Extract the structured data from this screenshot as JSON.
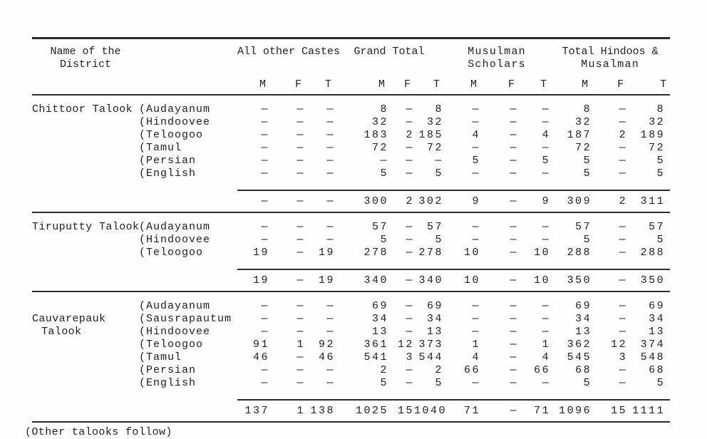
{
  "page": {
    "footer_note": "(Other talooks follow)"
  },
  "colors": {
    "background": "#fefefe",
    "text": "#1f1f1f",
    "rule": "#2b2b2b"
  },
  "table": {
    "district_header_lines": [
      "Name of the",
      "District"
    ],
    "column_groups": [
      {
        "name": "all-other-castes",
        "label_lines": [
          "All other Castes"
        ],
        "spaced": false
      },
      {
        "name": "grand-total",
        "label_lines": [
          "Grand Total"
        ],
        "spaced": false
      },
      {
        "name": "musulman-scholars",
        "label_lines": [
          "Musulman",
          "Scholars"
        ],
        "spaced": true
      },
      {
        "name": "total-hindoos-musalman",
        "label_lines": [
          "Total Hindoos &",
          "Musalman"
        ],
        "spaced": true
      }
    ],
    "sub_columns": [
      "M",
      "F",
      "T"
    ],
    "blocks": [
      {
        "district_lines": [
          {
            "row": 0,
            "text": "Chittoor Talook",
            "indent": false
          }
        ],
        "rows": [
          {
            "language": "(Audayanum",
            "values": [
              "—",
              "—",
              "—",
              "8",
              "—",
              "8",
              "—",
              "—",
              "—",
              "8",
              "—",
              "8"
            ]
          },
          {
            "language": "(Hindoovee",
            "values": [
              "—",
              "—",
              "—",
              "32",
              "—",
              "32",
              "—",
              "—",
              "—",
              "32",
              "—",
              "32"
            ]
          },
          {
            "language": "(Teloogoo",
            "values": [
              "—",
              "—",
              "—",
              "183",
              "2",
              "185",
              "4",
              "—",
              "4",
              "187",
              "2",
              "189"
            ]
          },
          {
            "language": "(Tamul",
            "values": [
              "—",
              "—",
              "—",
              "72",
              "—",
              "72",
              "—",
              "—",
              "—",
              "72",
              "—",
              "72"
            ]
          },
          {
            "language": "(Persian",
            "values": [
              "—",
              "—",
              "—",
              "—",
              "—",
              "—",
              "5",
              "—",
              "5",
              "5",
              "—",
              "5"
            ]
          },
          {
            "language": "(English",
            "values": [
              "—",
              "—",
              "—",
              "5",
              "—",
              "5",
              "—",
              "—",
              "—",
              "5",
              "—",
              "5"
            ]
          }
        ],
        "total_values": [
          "—",
          "—",
          "—",
          "300",
          "2",
          "302",
          "9",
          "—",
          "9",
          "309",
          "2",
          "311"
        ]
      },
      {
        "district_lines": [
          {
            "row": 0,
            "text": "Tiruputty Talook",
            "indent": false
          }
        ],
        "rows": [
          {
            "language": "(Audayanum",
            "values": [
              "—",
              "—",
              "—",
              "57",
              "—",
              "57",
              "—",
              "—",
              "—",
              "57",
              "—",
              "57"
            ]
          },
          {
            "language": "(Hindoovee",
            "values": [
              "—",
              "—",
              "—",
              "5",
              "—",
              "5",
              "—",
              "—",
              "—",
              "5",
              "—",
              "5"
            ]
          },
          {
            "language": "(Teloogoo",
            "values": [
              "19",
              "—",
              "19",
              "278",
              "—",
              "278",
              "10",
              "—",
              "10",
              "288",
              "—",
              "288"
            ]
          }
        ],
        "total_values": [
          "19",
          "—",
          "19",
          "340",
          "—",
          "340",
          "10",
          "—",
          "10",
          "350",
          "—",
          "350"
        ]
      },
      {
        "district_lines": [
          {
            "row": 1,
            "text": "Cauvarepauk",
            "indent": false
          },
          {
            "row": 2,
            "text": "Talook",
            "indent": true
          }
        ],
        "rows": [
          {
            "language": "(Audayanum",
            "values": [
              "—",
              "—",
              "—",
              "69",
              "—",
              "69",
              "—",
              "—",
              "—",
              "69",
              "—",
              "69"
            ]
          },
          {
            "language": "(Sausrapautum",
            "values": [
              "—",
              "—",
              "—",
              "34",
              "—",
              "34",
              "—",
              "—",
              "—",
              "34",
              "—",
              "34"
            ]
          },
          {
            "language": "(Hindoovee",
            "values": [
              "—",
              "—",
              "—",
              "13",
              "—",
              "13",
              "—",
              "—",
              "—",
              "13",
              "—",
              "13"
            ]
          },
          {
            "language": "(Teloogoo",
            "values": [
              "91",
              "1",
              "92",
              "361",
              "12",
              "373",
              "1",
              "—",
              "1",
              "362",
              "12",
              "374"
            ]
          },
          {
            "language": "(Tamul",
            "values": [
              "46",
              "—",
              "46",
              "541",
              "3",
              "544",
              "4",
              "—",
              "4",
              "545",
              "3",
              "548"
            ]
          },
          {
            "language": "(Persian",
            "values": [
              "—",
              "—",
              "—",
              "2",
              "—",
              "2",
              "66",
              "—",
              "66",
              "68",
              "—",
              "68"
            ]
          },
          {
            "language": "(English",
            "values": [
              "—",
              "—",
              "—",
              "5",
              "—",
              "5",
              "—",
              "—",
              "—",
              "5",
              "—",
              "5"
            ]
          }
        ],
        "total_values": [
          "137",
          "1",
          "138",
          "1025",
          "15",
          "1040",
          "71",
          "—",
          "71",
          "1096",
          "15",
          "1111"
        ]
      }
    ]
  }
}
